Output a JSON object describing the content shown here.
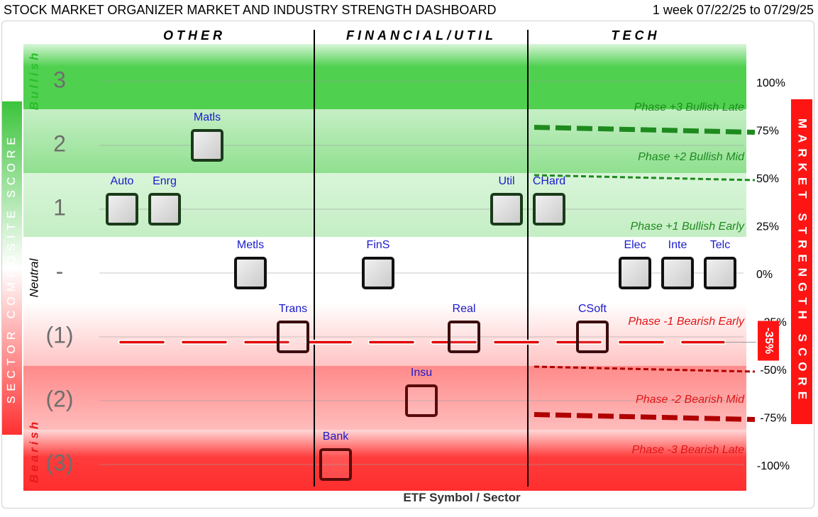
{
  "header": {
    "title": "STOCK MARKET ORGANIZER MARKET AND INDUSTRY STRENGTH DASHBOARD",
    "period": "1 week 07/22/25 to 07/29/25"
  },
  "colors": {
    "bullish_strong": "#4fd04f",
    "bullish_light": "#bdeebd",
    "bearish_strong": "#ff3b3b",
    "bearish_light": "#ffd6d6",
    "bull_line": "#1e8a1e",
    "bear_line": "#b00000",
    "market_line": "#e00000",
    "label_blue": "#1a1acc"
  },
  "chart_data": {
    "type": "scatter",
    "title": "STOCK MARKET ORGANIZER MARKET AND INDUSTRY STRENGTH DASHBOARD",
    "xlabel": "ETF Symbol / Sector",
    "left_axis_title": "SECTOR COMPOSITE SCORE",
    "right_axis_title": "MARKET STRENGTH SCORE",
    "sector_groups": [
      "OTHER",
      "FINANCIAL/UTIL",
      "TECH"
    ],
    "left_ticks": [
      "3",
      "2",
      "1",
      "-",
      "(1)",
      "(2)",
      "(3)"
    ],
    "left_zone_labels": {
      "bullish": "Bullish",
      "neutral": "Neutral",
      "bearish": "Bearish"
    },
    "right_ticks": [
      "100%",
      "75%",
      "50%",
      "25%",
      "0%",
      "-25%",
      "-50%",
      "-75%",
      "-100%"
    ],
    "phase_labels": [
      "Phase +3 Bullish Late",
      "Phase +2 Bullish Mid",
      "Phase +1 Bullish Early",
      "Phase -1 Bearish Early",
      "Phase -2 Bearish Mid",
      "Phase -3 Bearish Late"
    ],
    "market_score": {
      "value": -35,
      "label": "-35%"
    },
    "ylim": [
      -100,
      100
    ],
    "points": [
      {
        "symbol": "Matls",
        "group": "OTHER",
        "score": 2
      },
      {
        "symbol": "Auto",
        "group": "OTHER",
        "score": 1
      },
      {
        "symbol": "Enrg",
        "group": "OTHER",
        "score": 1
      },
      {
        "symbol": "Metls",
        "group": "OTHER",
        "score": 0
      },
      {
        "symbol": "Trans",
        "group": "OTHER",
        "score": -1
      },
      {
        "symbol": "Bank",
        "group": "FINANCIAL/UTIL",
        "score": -3
      },
      {
        "symbol": "FinS",
        "group": "FINANCIAL/UTIL",
        "score": 0
      },
      {
        "symbol": "Insu",
        "group": "FINANCIAL/UTIL",
        "score": -2
      },
      {
        "symbol": "Real",
        "group": "FINANCIAL/UTIL",
        "score": -1
      },
      {
        "symbol": "Util",
        "group": "FINANCIAL/UTIL",
        "score": 1
      },
      {
        "symbol": "CHard",
        "group": "TECH",
        "score": 1
      },
      {
        "symbol": "CSoft",
        "group": "TECH",
        "score": -1
      },
      {
        "symbol": "Elec",
        "group": "TECH",
        "score": 0
      },
      {
        "symbol": "Inte",
        "group": "TECH",
        "score": 0
      },
      {
        "symbol": "Telc",
        "group": "TECH",
        "score": 0
      }
    ]
  }
}
